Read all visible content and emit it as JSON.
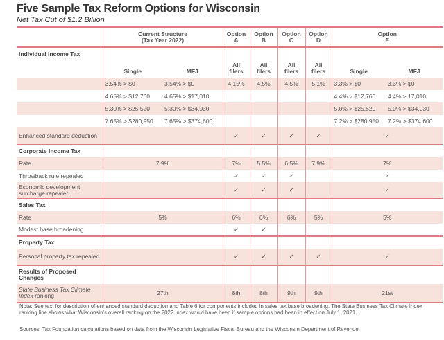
{
  "title": "Five Sample Tax Reform Options for Wisconsin",
  "subtitle": "Net Tax Cut of $1.2 Billion",
  "header": {
    "current": "Current Structure",
    "current_year": "(Tax Year 2022)",
    "a": [
      "Option",
      "A"
    ],
    "b": [
      "Option",
      "B"
    ],
    "c": [
      "Option",
      "C"
    ],
    "d": [
      "Option",
      "D"
    ],
    "e": [
      "Option",
      "E"
    ]
  },
  "iit": {
    "label": "Individual Income Tax",
    "single": "Single",
    "mfj": "MFJ",
    "all_filers": "All filers",
    "brackets": [
      {
        "cs": "3.54% > $0",
        "cm": "3.54% > $0",
        "a": "4.15%",
        "b": "4.5%",
        "c": "4.5%",
        "d": "5.1%",
        "es": "3.3% > $0",
        "em": "3.3% > $0"
      },
      {
        "cs": "4.65% > $12,760",
        "cm": "4.65% > $17,010",
        "a": "",
        "b": "",
        "c": "",
        "d": "",
        "es": "4.4% > $12,760",
        "em": "4.4% > 17,010"
      },
      {
        "cs": "5.30% > $25,520",
        "cm": "5.30% > $34,030",
        "a": "",
        "b": "",
        "c": "",
        "d": "",
        "es": "5.0% > $25,520",
        "em": "5.0% > $34,030"
      },
      {
        "cs": "7.65% > $280,950",
        "cm": "7.65% > $374,600",
        "a": "",
        "b": "",
        "c": "",
        "d": "",
        "es": "7.2% > $280,950",
        "em": "7.2% > $374,600"
      }
    ],
    "enhanced": {
      "label": "Enhanced standard deduction",
      "cur": "",
      "a": "✓",
      "b": "✓",
      "c": "✓",
      "d": "✓",
      "e": "✓"
    }
  },
  "corp": {
    "label": "Corporate Income Tax",
    "rows": [
      {
        "label": "Rate",
        "cur": "7.9%",
        "a": "7%",
        "b": "5.5%",
        "c": "6.5%",
        "d": "7.9%",
        "e": "7%"
      },
      {
        "label": "Throwback rule repealed",
        "cur": "",
        "a": "✓",
        "b": "✓",
        "c": "✓",
        "d": "",
        "e": "✓"
      },
      {
        "label": "Economic development surcharge repealed",
        "cur": "",
        "a": "✓",
        "b": "✓",
        "c": "✓",
        "d": "",
        "e": "✓"
      }
    ]
  },
  "sales": {
    "label": "Sales Tax",
    "rows": [
      {
        "label": "Rate",
        "cur": "5%",
        "a": "6%",
        "b": "6%",
        "c": "6%",
        "d": "5%",
        "e": "5%"
      },
      {
        "label": "Modest base broadening",
        "cur": "",
        "a": "✓",
        "b": "✓",
        "c": "",
        "d": "",
        "e": ""
      }
    ]
  },
  "property": {
    "label": "Property Tax",
    "rows": [
      {
        "label": "Personal property tax repealed",
        "cur": "",
        "a": "✓",
        "b": "✓",
        "c": "✓",
        "d": "✓",
        "e": "✓"
      }
    ]
  },
  "results": {
    "label": "Results of Proposed Changes",
    "rows": [
      {
        "label_it": "State Business Tax Climate Index",
        "label_rest": " ranking",
        "cur": "27th",
        "a": "8th",
        "b": "8th",
        "c": "9th",
        "d": "9th",
        "e": "21st"
      }
    ]
  },
  "note": "Note: See text for description of enhanced standard deduction and Table 6 for components included in sales tax base broadening. The State Business Tax Climate Index ranking line shows what Wisconsin's overall ranking on the 2022 Index would have been if sample options had been in effect on July 1, 2021.",
  "sources": "Sources: Tax Foundation calculations based on data from the Wisconsin Legislative Fiscal Bureau and the Wisconsin Department of Revenue."
}
